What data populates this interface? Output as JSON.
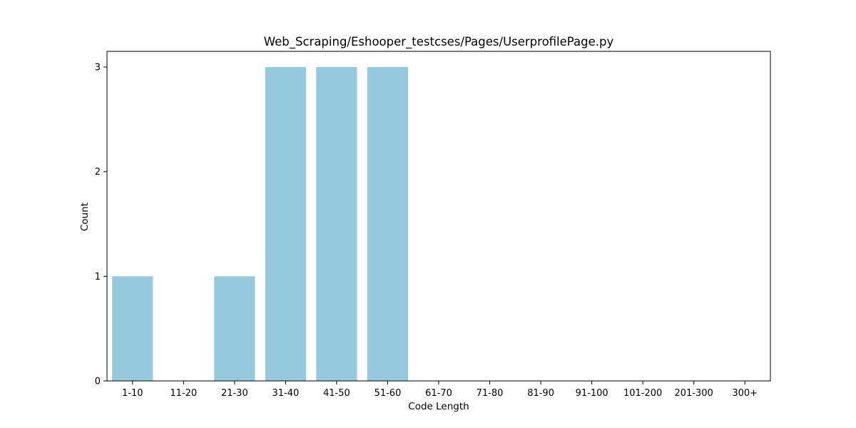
{
  "chart_data": {
    "type": "bar",
    "title": "Web_Scraping/Eshooper_testcses/Pages/UserprofilePage.py",
    "xlabel": "Code Length",
    "ylabel": "Count",
    "categories": [
      "1-10",
      "11-20",
      "21-30",
      "31-40",
      "41-50",
      "51-60",
      "61-70",
      "71-80",
      "81-90",
      "91-100",
      "101-200",
      "201-300",
      "300+"
    ],
    "values": [
      1,
      0,
      1,
      3,
      3,
      3,
      0,
      0,
      0,
      0,
      0,
      0,
      0
    ],
    "yticks": [
      "0",
      "1",
      "2",
      "3"
    ],
    "ylim": [
      0,
      3.15
    ],
    "bar_color": "#95c9de",
    "grid": false,
    "legend": "none"
  }
}
